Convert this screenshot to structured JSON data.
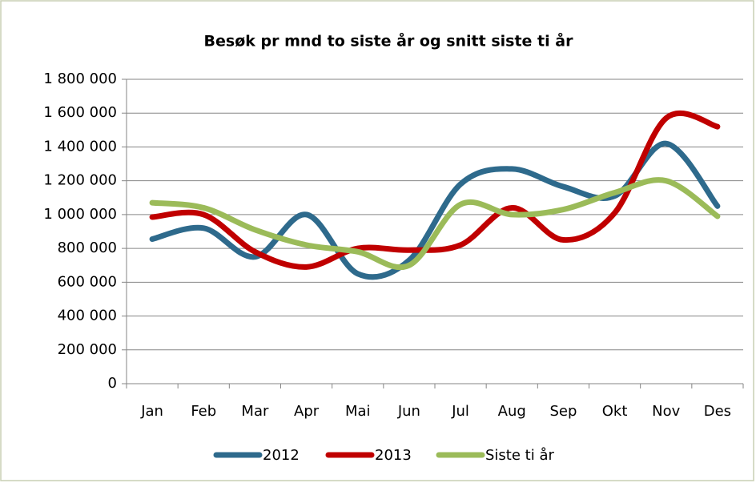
{
  "chart_data": {
    "type": "line",
    "title": "Besøk pr mnd to siste år og snitt siste ti år",
    "categories": [
      "Jan",
      "Feb",
      "Mar",
      "Apr",
      "Mai",
      "Jun",
      "Jul",
      "Aug",
      "Sep",
      "Okt",
      "Nov",
      "Des"
    ],
    "series": [
      {
        "name": "2012",
        "color": "#2e6a8c",
        "values": [
          855000,
          920000,
          750000,
          1000000,
          650000,
          730000,
          1180000,
          1270000,
          1165000,
          1110000,
          1420000,
          1050000
        ]
      },
      {
        "name": "2013",
        "color": "#c00000",
        "values": [
          985000,
          1000000,
          780000,
          690000,
          800000,
          790000,
          820000,
          1040000,
          850000,
          1010000,
          1570000,
          1520000
        ]
      },
      {
        "name": "Siste ti år",
        "color": "#9bbb59",
        "values": [
          1070000,
          1040000,
          910000,
          820000,
          780000,
          700000,
          1060000,
          1000000,
          1030000,
          1130000,
          1200000,
          990000
        ]
      }
    ],
    "ylim": [
      0,
      1800000
    ],
    "yticks": [
      0,
      {
        "value": 200000,
        "label": "200 000"
      },
      {
        "value": 400000,
        "label": "400 000"
      },
      {
        "value": 600000,
        "label": "600 000"
      },
      {
        "value": 800000,
        "label": "800 000"
      },
      {
        "value": 1000000,
        "label": "1 000 000"
      },
      {
        "value": 1200000,
        "label": "1 200 000"
      },
      {
        "value": 1400000,
        "label": "1 400 000"
      },
      {
        "value": 1600000,
        "label": "1 600 000"
      },
      {
        "value": 1800000,
        "label": "1 800 000"
      }
    ],
    "grid": true,
    "legend": "bottom"
  }
}
